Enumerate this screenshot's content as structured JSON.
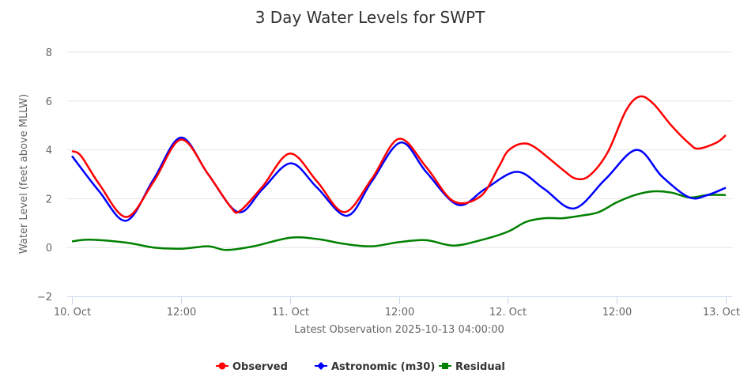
{
  "chart_data": {
    "type": "line",
    "title": "3 Day Water Levels for SWPT",
    "subtitle": "Latest Observation 2025-10-13 04:00:00",
    "ylabel": "Water Level (feet above MLLW)",
    "xlabel": "",
    "ylim": [
      -2,
      8
    ],
    "yticks": [
      "−2",
      "0",
      "2",
      "4",
      "6",
      "8"
    ],
    "ytick_values": [
      -2,
      0,
      2,
      4,
      6,
      8
    ],
    "xlim": [
      "2025-10-10T00:00",
      "2025-10-13T00:00"
    ],
    "xticks": [
      {
        "x": "2025-10-10T00:00",
        "label": "10. Oct"
      },
      {
        "x": "2025-10-10T12:00",
        "label": "12:00"
      },
      {
        "x": "2025-10-11T00:00",
        "label": "11. Oct"
      },
      {
        "x": "2025-10-11T12:00",
        "label": "12:00"
      },
      {
        "x": "2025-10-12T00:00",
        "label": "12. Oct"
      },
      {
        "x": "2025-10-12T12:00",
        "label": "12:00"
      },
      {
        "x": "2025-10-13T00:00",
        "label": "13. Oct"
      }
    ],
    "grid": true,
    "legend": "bottom",
    "series": [
      {
        "name": "Observed",
        "color": "#ff0000",
        "marker": "circle",
        "points": [
          [
            "2025-10-10T00:00",
            3.95
          ],
          [
            "2025-10-10T01:00",
            3.75
          ],
          [
            "2025-10-10T03:00",
            2.6
          ],
          [
            "2025-10-10T06:00",
            1.25
          ],
          [
            "2025-10-10T09:00",
            2.7
          ],
          [
            "2025-10-10T12:00",
            4.42
          ],
          [
            "2025-10-10T15:00",
            3.0
          ],
          [
            "2025-10-10T17:30",
            1.65
          ],
          [
            "2025-10-10T18:30",
            1.5
          ],
          [
            "2025-10-10T21:00",
            2.5
          ],
          [
            "2025-10-11T00:00",
            3.85
          ],
          [
            "2025-10-11T03:00",
            2.7
          ],
          [
            "2025-10-11T06:00",
            1.45
          ],
          [
            "2025-10-11T09:00",
            2.8
          ],
          [
            "2025-10-11T12:00",
            4.45
          ],
          [
            "2025-10-11T15:00",
            3.3
          ],
          [
            "2025-10-11T18:00",
            1.9
          ],
          [
            "2025-10-11T21:00",
            2.1
          ],
          [
            "2025-10-11T23:00",
            3.3
          ],
          [
            "2025-10-12T00:00",
            3.95
          ],
          [
            "2025-10-12T01:30",
            4.25
          ],
          [
            "2025-10-12T03:00",
            4.1
          ],
          [
            "2025-10-12T06:00",
            3.2
          ],
          [
            "2025-10-12T07:30",
            2.82
          ],
          [
            "2025-10-12T09:00",
            2.95
          ],
          [
            "2025-10-12T11:00",
            3.9
          ],
          [
            "2025-10-12T13:00",
            5.6
          ],
          [
            "2025-10-12T14:30",
            6.18
          ],
          [
            "2025-10-12T16:00",
            5.9
          ],
          [
            "2025-10-12T18:00",
            5.0
          ],
          [
            "2025-10-12T20:00",
            4.25
          ],
          [
            "2025-10-12T21:00",
            4.05
          ],
          [
            "2025-10-12T23:00",
            4.3
          ],
          [
            "2025-10-13T00:00",
            4.6
          ]
        ]
      },
      {
        "name": "Astronomic (m30)",
        "color": "#0000ff",
        "marker": "diamond",
        "points": [
          [
            "2025-10-10T00:00",
            3.75
          ],
          [
            "2025-10-10T03:00",
            2.3
          ],
          [
            "2025-10-10T06:00",
            1.1
          ],
          [
            "2025-10-10T09:00",
            2.8
          ],
          [
            "2025-10-10T12:00",
            4.5
          ],
          [
            "2025-10-10T15:00",
            3.0
          ],
          [
            "2025-10-10T18:18",
            1.45
          ],
          [
            "2025-10-10T21:00",
            2.4
          ],
          [
            "2025-10-11T00:06",
            3.45
          ],
          [
            "2025-10-11T03:00",
            2.45
          ],
          [
            "2025-10-11T06:18",
            1.3
          ],
          [
            "2025-10-11T09:00",
            2.7
          ],
          [
            "2025-10-11T12:12",
            4.3
          ],
          [
            "2025-10-11T15:00",
            3.1
          ],
          [
            "2025-10-11T18:30",
            1.75
          ],
          [
            "2025-10-11T21:30",
            2.4
          ],
          [
            "2025-10-12T01:00",
            3.1
          ],
          [
            "2025-10-12T04:00",
            2.4
          ],
          [
            "2025-10-12T07:18",
            1.6
          ],
          [
            "2025-10-12T10:45",
            2.8
          ],
          [
            "2025-10-12T14:12",
            4.0
          ],
          [
            "2025-10-12T17:00",
            2.9
          ],
          [
            "2025-10-12T20:00",
            2.05
          ],
          [
            "2025-10-12T22:00",
            2.15
          ],
          [
            "2025-10-13T00:00",
            2.45
          ]
        ]
      },
      {
        "name": "Residual",
        "color": "#008000",
        "marker": "square",
        "points": [
          [
            "2025-10-10T00:00",
            0.25
          ],
          [
            "2025-10-10T02:00",
            0.32
          ],
          [
            "2025-10-10T06:00",
            0.2
          ],
          [
            "2025-10-10T09:00",
            0.0
          ],
          [
            "2025-10-10T12:00",
            -0.05
          ],
          [
            "2025-10-10T15:00",
            0.05
          ],
          [
            "2025-10-10T17:00",
            -0.1
          ],
          [
            "2025-10-10T20:00",
            0.05
          ],
          [
            "2025-10-11T00:00",
            0.4
          ],
          [
            "2025-10-11T03:00",
            0.35
          ],
          [
            "2025-10-11T06:00",
            0.15
          ],
          [
            "2025-10-11T09:00",
            0.05
          ],
          [
            "2025-10-11T12:00",
            0.22
          ],
          [
            "2025-10-11T15:00",
            0.3
          ],
          [
            "2025-10-11T18:00",
            0.08
          ],
          [
            "2025-10-11T21:00",
            0.3
          ],
          [
            "2025-10-12T00:00",
            0.65
          ],
          [
            "2025-10-12T02:00",
            1.05
          ],
          [
            "2025-10-12T04:00",
            1.2
          ],
          [
            "2025-10-12T06:00",
            1.2
          ],
          [
            "2025-10-12T08:00",
            1.3
          ],
          [
            "2025-10-12T10:00",
            1.45
          ],
          [
            "2025-10-12T12:00",
            1.85
          ],
          [
            "2025-10-12T14:00",
            2.15
          ],
          [
            "2025-10-12T16:00",
            2.3
          ],
          [
            "2025-10-12T18:00",
            2.25
          ],
          [
            "2025-10-12T20:00",
            2.05
          ],
          [
            "2025-10-12T22:00",
            2.15
          ],
          [
            "2025-10-13T00:00",
            2.15
          ]
        ]
      }
    ]
  }
}
